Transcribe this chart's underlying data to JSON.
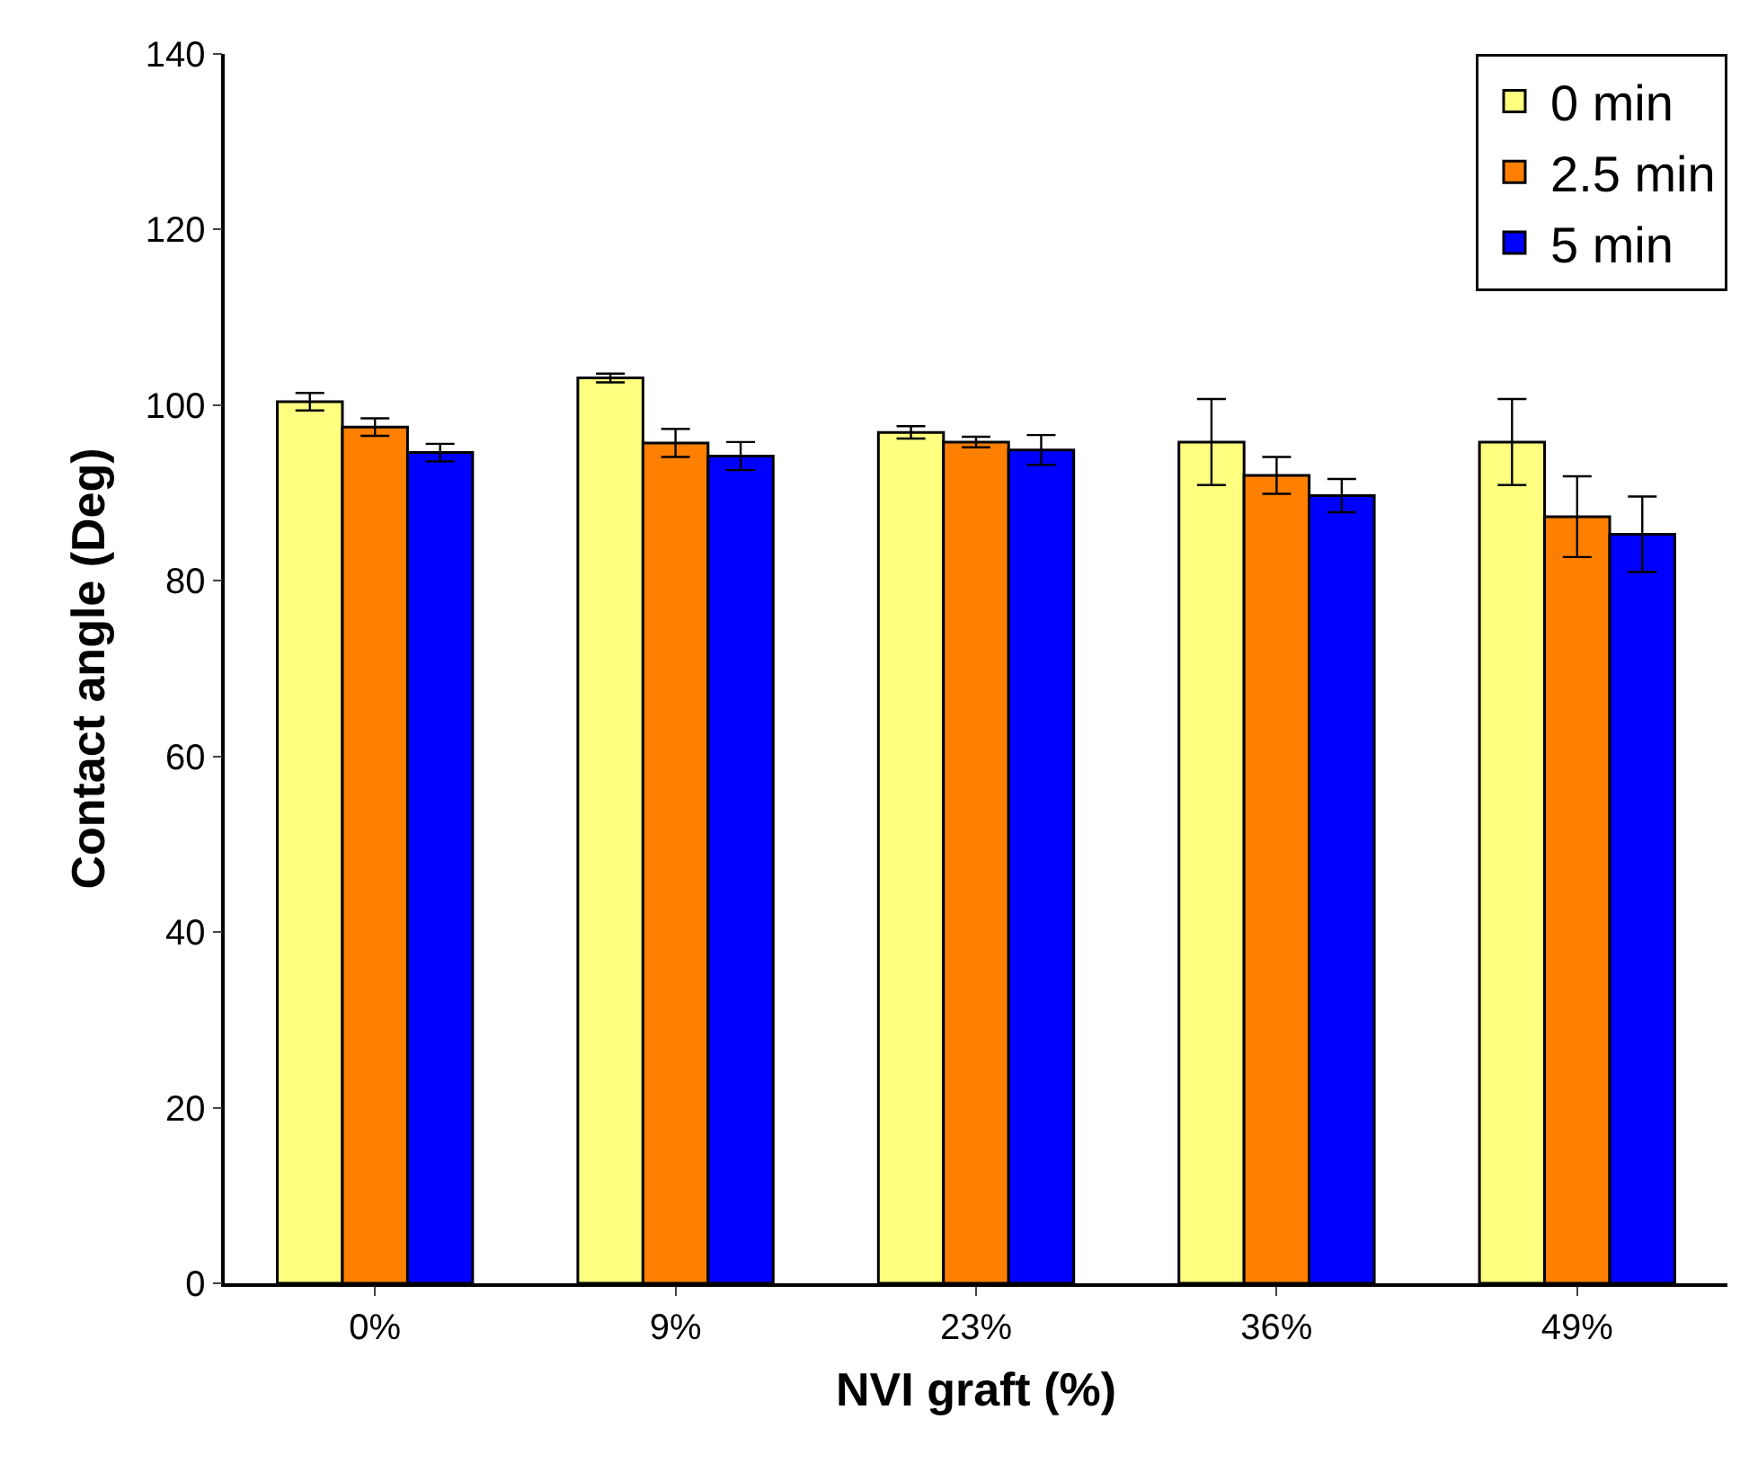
{
  "chart_data": {
    "type": "bar",
    "xlabel": "NVI graft (%)",
    "ylabel": "Contact angle (Deg)",
    "categories": [
      "0%",
      "9%",
      "23%",
      "36%",
      "49%"
    ],
    "series": [
      {
        "name": "0 min",
        "color": "#ffff80",
        "values": [
          100.4,
          103.1,
          96.9,
          95.8,
          95.8
        ],
        "errors": [
          1.0,
          0.5,
          0.7,
          4.9,
          4.9
        ]
      },
      {
        "name": "2.5 min",
        "color": "#ff8000",
        "values": [
          97.5,
          95.7,
          95.8,
          92.0,
          87.3
        ],
        "errors": [
          1.0,
          1.6,
          0.6,
          2.1,
          4.6
        ]
      },
      {
        "name": "5 min",
        "color": "#0000ff",
        "values": [
          94.6,
          94.2,
          94.9,
          89.7,
          85.3
        ],
        "errors": [
          1.0,
          1.6,
          1.7,
          1.9,
          4.3
        ]
      }
    ],
    "ylim": [
      0,
      140
    ],
    "yticks": [
      0,
      20,
      40,
      60,
      80,
      100,
      120,
      140
    ],
    "legend": "top right"
  }
}
